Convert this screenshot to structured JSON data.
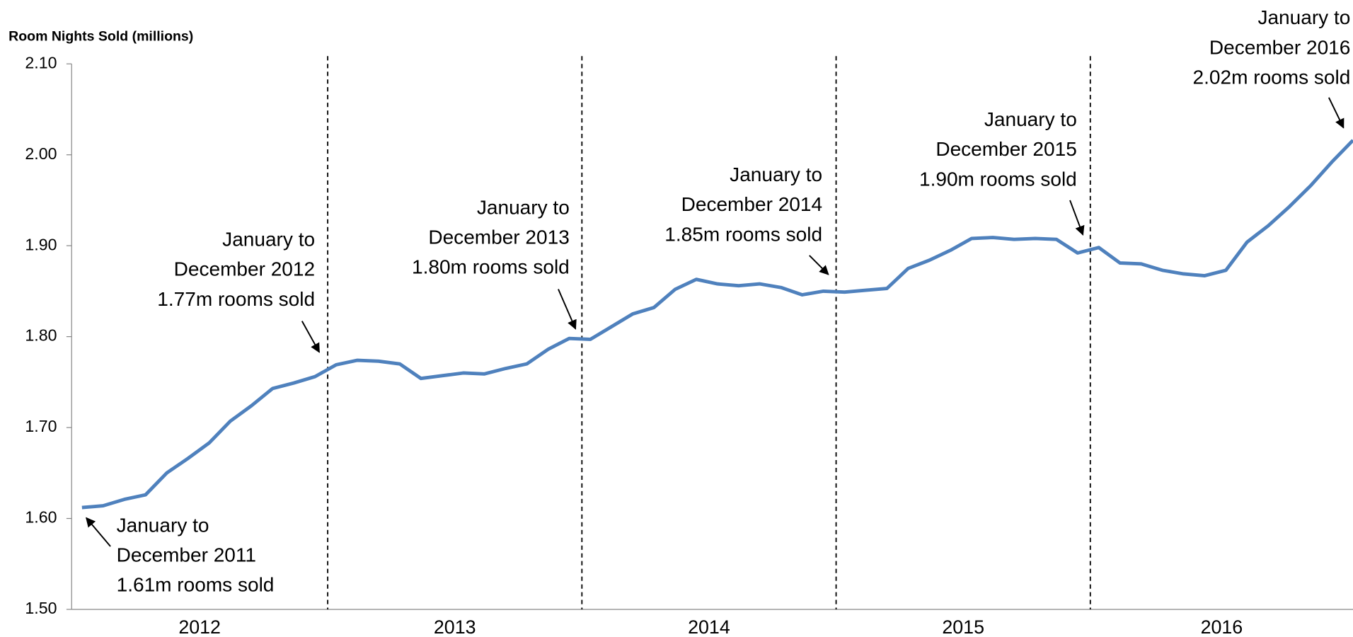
{
  "chart_data": {
    "type": "line",
    "y_axis_title": "Room Nights Sold (millions)",
    "x_labels": [
      "2012",
      "2013",
      "2014",
      "2015",
      "2016"
    ],
    "series": [
      {
        "name": "Room Nights Sold",
        "color": "#4f81bd",
        "values": [
          1.612,
          1.614,
          1.621,
          1.626,
          1.65,
          1.666,
          1.683,
          1.707,
          1.724,
          1.743,
          1.749,
          1.756,
          1.769,
          1.774,
          1.773,
          1.77,
          1.754,
          1.757,
          1.76,
          1.759,
          1.765,
          1.77,
          1.786,
          1.798,
          1.797,
          1.811,
          1.825,
          1.832,
          1.852,
          1.863,
          1.858,
          1.856,
          1.858,
          1.854,
          1.846,
          1.85,
          1.849,
          1.851,
          1.853,
          1.875,
          1.884,
          1.895,
          1.908,
          1.909,
          1.907,
          1.908,
          1.907,
          1.892,
          1.898,
          1.881,
          1.88,
          1.873,
          1.869,
          1.867,
          1.873,
          1.904,
          1.922,
          1.943,
          1.966,
          1.992,
          2.016
        ]
      }
    ],
    "ylim": [
      1.5,
      2.1
    ],
    "yticks": [
      {
        "value": 1.5,
        "label": "1.50"
      },
      {
        "value": 1.6,
        "label": "1.60"
      },
      {
        "value": 1.7,
        "label": "1.70"
      },
      {
        "value": 1.8,
        "label": "1.80"
      },
      {
        "value": 1.9,
        "label": "1.90"
      },
      {
        "value": 2.0,
        "label": "2.00"
      },
      {
        "value": 2.1,
        "label": "2.10"
      }
    ],
    "annotations": [
      {
        "lines": [
          "January to",
          "December 2011",
          "1.61m rooms sold"
        ]
      },
      {
        "lines": [
          "January to",
          "December 2012",
          "1.77m rooms sold"
        ]
      },
      {
        "lines": [
          "January to",
          "December 2013",
          "1.80m rooms sold"
        ]
      },
      {
        "lines": [
          "January to",
          "December 2014",
          "1.85m rooms sold"
        ]
      },
      {
        "lines": [
          "January to",
          "December 2015",
          "1.90m rooms sold"
        ]
      },
      {
        "lines": [
          "January to",
          "December 2016",
          "2.02m rooms sold"
        ]
      }
    ]
  }
}
